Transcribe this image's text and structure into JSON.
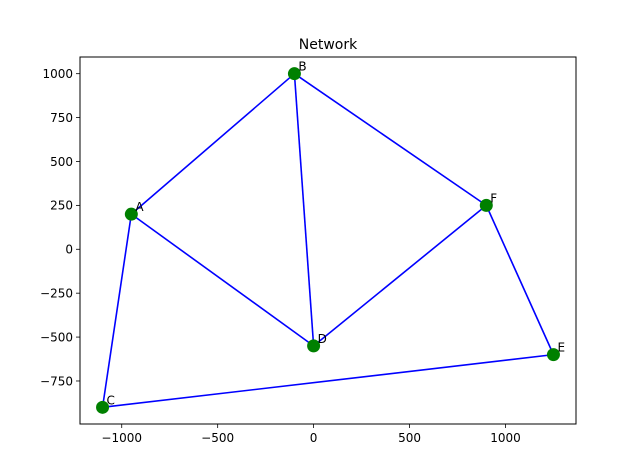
{
  "chart_data": {
    "type": "scatter",
    "title": "Network",
    "xlabel": "",
    "ylabel": "",
    "xlim": [
      -1217.5,
      1367.5
    ],
    "ylim": [
      -995,
      1095
    ],
    "xticks": [
      -1000,
      -500,
      0,
      500,
      1000
    ],
    "yticks": [
      -750,
      -500,
      -250,
      0,
      250,
      500,
      750,
      1000
    ],
    "xtick_labels": [
      "−1000",
      "−500",
      "0",
      "500",
      "1000"
    ],
    "ytick_labels": [
      "−750",
      "−500",
      "−250",
      "0",
      "250",
      "500",
      "750",
      "1000"
    ],
    "grid": false,
    "node_color": "#008000",
    "edge_color": "#0000ff",
    "nodes": [
      {
        "name": "A",
        "x": -950,
        "y": 200
      },
      {
        "name": "B",
        "x": -100,
        "y": 1000
      },
      {
        "name": "C",
        "x": -1100,
        "y": -900
      },
      {
        "name": "D",
        "x": 0,
        "y": -550
      },
      {
        "name": "E",
        "x": 1250,
        "y": -600
      },
      {
        "name": "F",
        "x": 900,
        "y": 250
      }
    ],
    "edges": [
      [
        "A",
        "B"
      ],
      [
        "A",
        "C"
      ],
      [
        "A",
        "D"
      ],
      [
        "B",
        "D"
      ],
      [
        "B",
        "F"
      ],
      [
        "C",
        "E"
      ],
      [
        "D",
        "F"
      ],
      [
        "E",
        "F"
      ]
    ]
  }
}
